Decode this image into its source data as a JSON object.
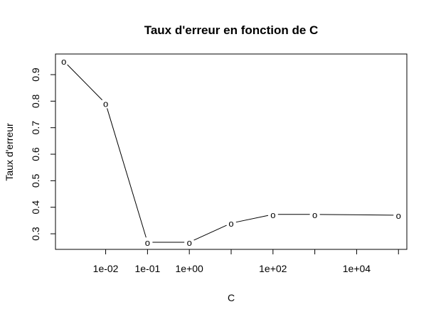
{
  "chart_data": {
    "type": "line",
    "title": "Taux d'erreur en fonction de C",
    "xlabel": "C",
    "ylabel": "Taux d'erreur",
    "x_scale": "log10",
    "x": [
      0.001,
      0.01,
      0.1,
      1,
      10,
      100,
      1000,
      10000,
      100000
    ],
    "series": [
      {
        "values": [
          0.951,
          0.791,
          0.268,
          0.268,
          0.34,
          0.373,
          0.373,
          null,
          0.37
        ]
      }
    ],
    "point_marker": "o",
    "x_ticks": [
      0.01,
      0.1,
      1,
      10,
      100,
      1000,
      10000,
      100000
    ],
    "x_tick_labels": [
      "1e-02",
      "1e-01",
      "1e+00",
      "",
      "1e+02",
      "",
      "1e+04",
      ""
    ],
    "y_ticks": [
      0.3,
      0.4,
      0.5,
      0.6,
      0.7,
      0.8,
      0.9
    ],
    "y_tick_labels": [
      "0.3",
      "0.4",
      "0.5",
      "0.6",
      "0.7",
      "0.8",
      "0.9"
    ],
    "xlim": [
      0.000631,
      158489
    ],
    "ylim": [
      0.2412,
      0.9778
    ],
    "grid": false
  }
}
